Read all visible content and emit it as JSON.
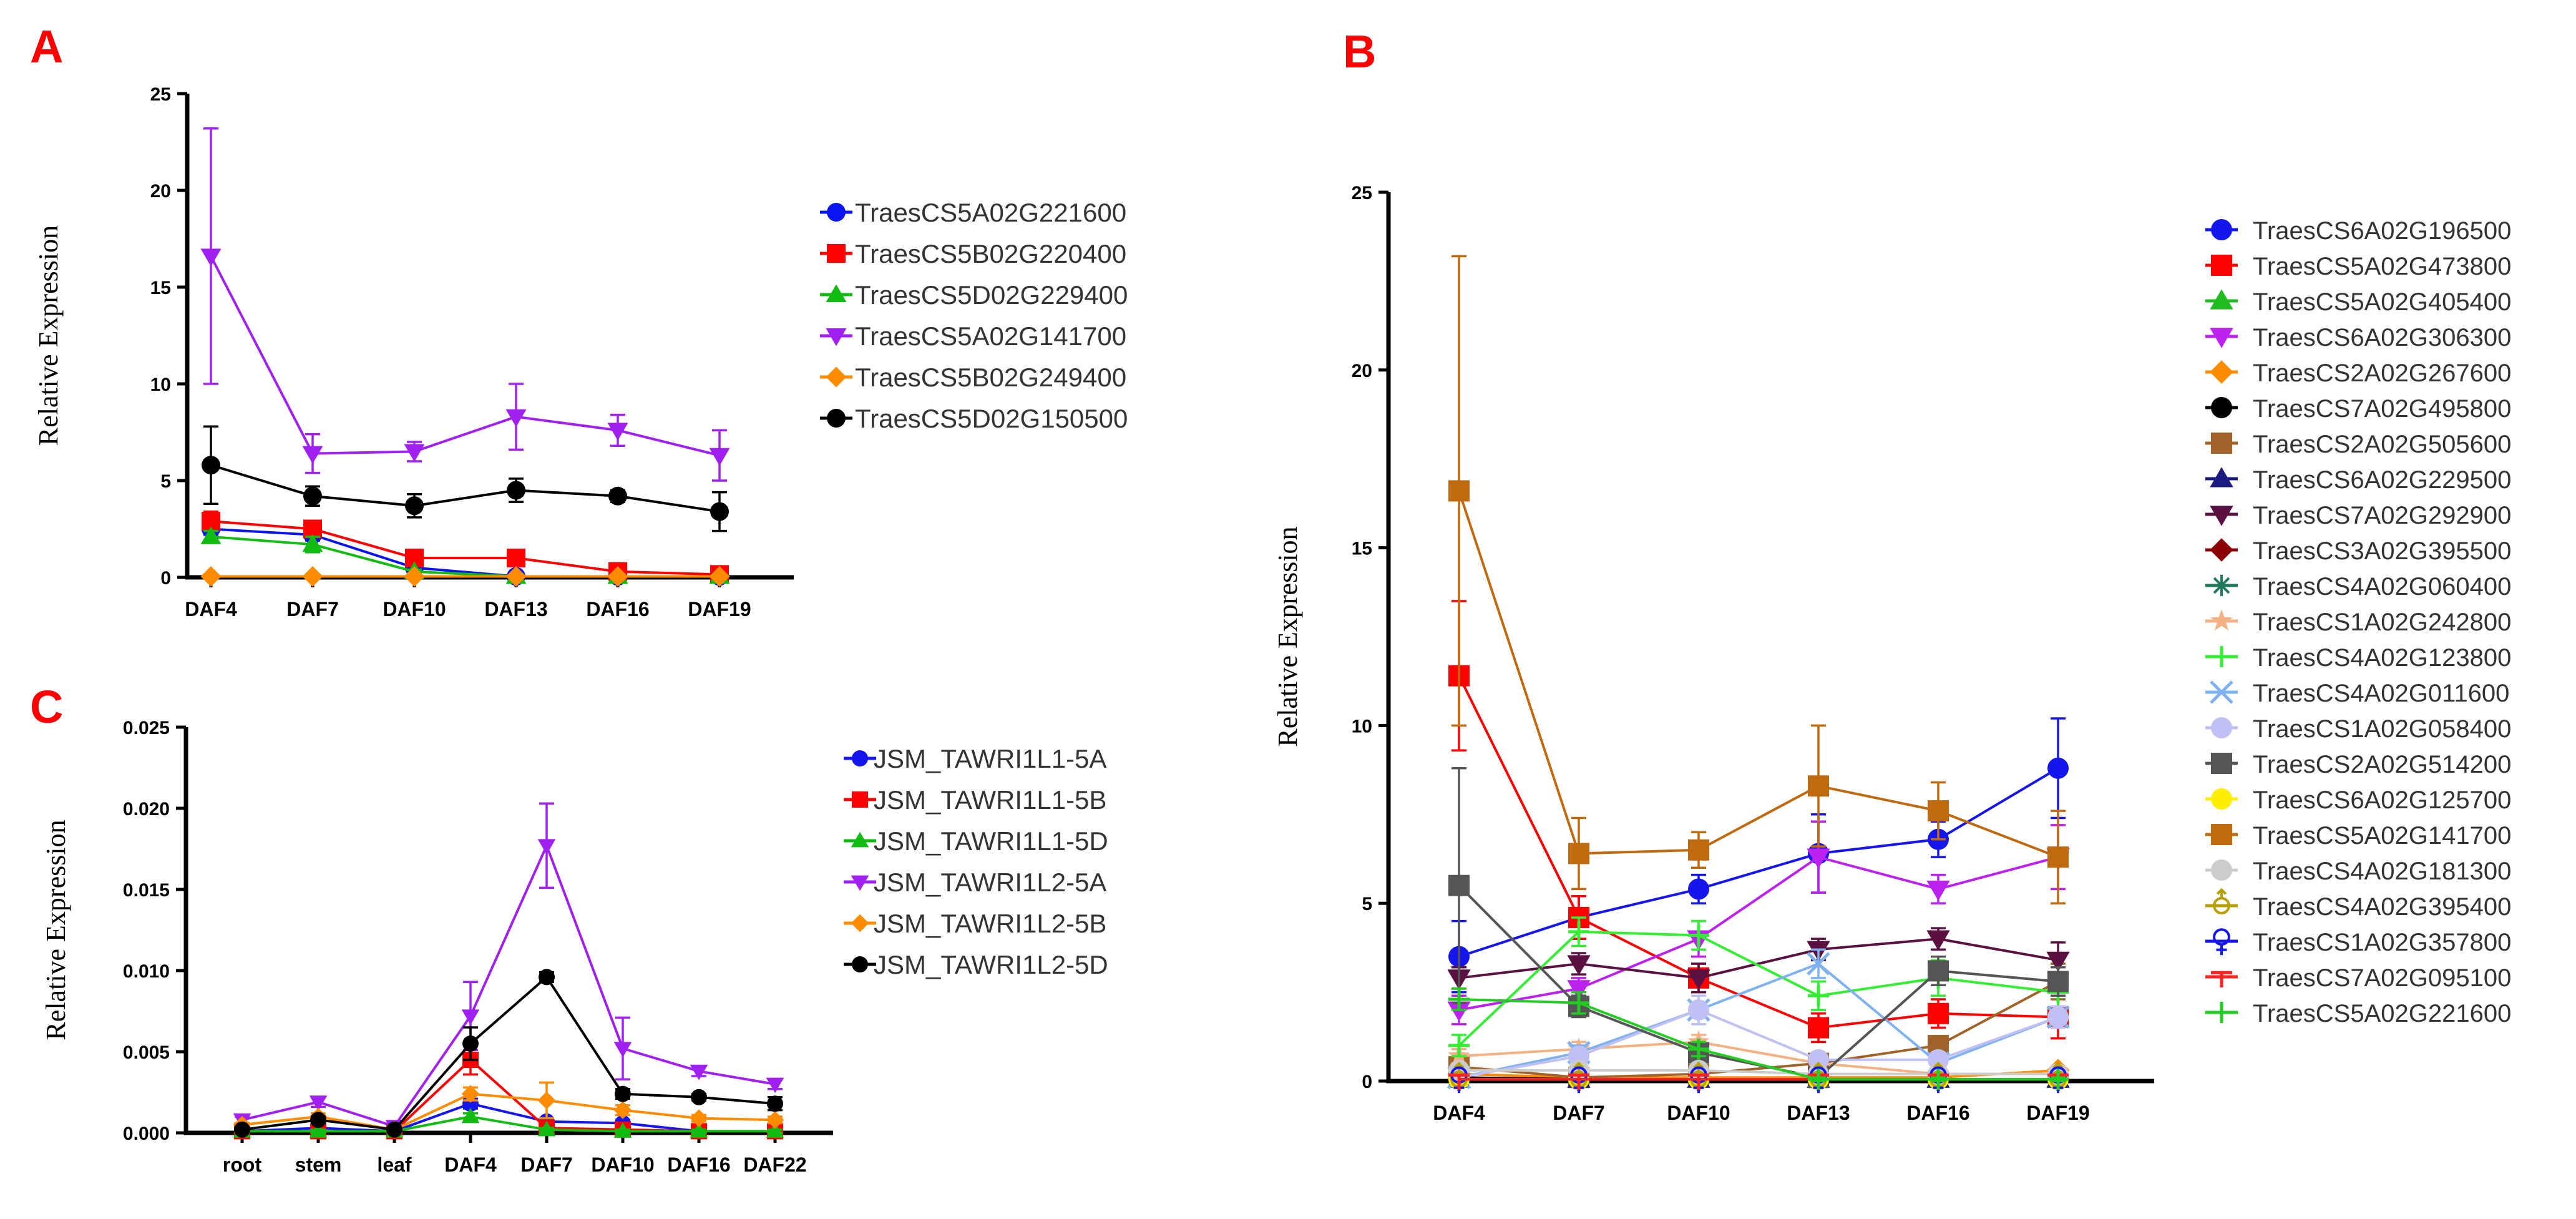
{
  "panels": {
    "A": "A",
    "B": "B",
    "C": "C"
  },
  "chart_data": [
    {
      "id": "A",
      "type": "line",
      "ylabel": "Relative Expression",
      "xlabel": "",
      "ylim": [
        0,
        25
      ],
      "yticks": [
        0,
        5,
        10,
        15,
        20,
        25
      ],
      "categories": [
        "DAF4",
        "DAF7",
        "DAF10",
        "DAF13",
        "DAF16",
        "DAF19"
      ],
      "series": [
        {
          "name": "TraesCS5A02G221600",
          "color": "#0a14f0",
          "marker": "circle",
          "values": [
            2.5,
            2.2,
            0.5,
            0.05,
            0.05,
            0.05
          ],
          "errors": [
            0.3,
            0.3,
            0.2,
            0.05,
            0.05,
            0.05
          ]
        },
        {
          "name": "TraesCS5B02G220400",
          "color": "#ff0000",
          "marker": "square",
          "values": [
            2.9,
            2.5,
            1.0,
            1.0,
            0.3,
            0.15
          ],
          "errors": [
            0.5,
            0.4,
            0.2,
            0.2,
            0.1,
            0.1
          ]
        },
        {
          "name": "TraesCS5D02G229400",
          "color": "#11bb11",
          "marker": "triangle-up",
          "values": [
            2.1,
            1.7,
            0.3,
            0.05,
            0.05,
            0.05
          ],
          "errors": [
            0.3,
            0.4,
            0.1,
            0.05,
            0.05,
            0.05
          ]
        },
        {
          "name": "TraesCS5A02G141700",
          "color": "#a020f0",
          "marker": "triangle-down",
          "values": [
            16.6,
            6.4,
            6.5,
            8.3,
            7.6,
            6.3
          ],
          "errors": [
            6.6,
            1.0,
            0.5,
            1.7,
            0.8,
            1.3
          ]
        },
        {
          "name": "TraesCS5B02G249400",
          "color": "#ff8c00",
          "marker": "diamond",
          "values": [
            0.05,
            0.05,
            0.05,
            0.05,
            0.05,
            0.05
          ],
          "errors": [
            0,
            0,
            0,
            0,
            0,
            0
          ]
        },
        {
          "name": "TraesCS5D02G150500",
          "color": "#000000",
          "marker": "circle",
          "values": [
            5.8,
            4.2,
            3.7,
            4.5,
            4.2,
            3.4
          ],
          "errors": [
            2.0,
            0.5,
            0.6,
            0.6,
            0.3,
            1.0
          ]
        }
      ]
    },
    {
      "id": "B",
      "type": "line",
      "ylabel": "Relative Expression",
      "xlabel": "",
      "ylim": [
        0,
        25
      ],
      "yticks": [
        0,
        5,
        10,
        15,
        20,
        25
      ],
      "categories": [
        "DAF4",
        "DAF7",
        "DAF10",
        "DAF13",
        "DAF16",
        "DAF19"
      ],
      "series": [
        {
          "name": "TraesCS6A02G196500",
          "color": "#1515ee",
          "marker": "circle",
          "values": [
            3.5,
            4.6,
            5.4,
            6.4,
            6.8,
            8.8
          ],
          "errors": [
            1.0,
            0.6,
            0.4,
            1.1,
            0.5,
            1.4
          ]
        },
        {
          "name": "TraesCS5A02G473800",
          "color": "#ff0000",
          "marker": "square",
          "values": [
            11.4,
            4.6,
            2.9,
            1.5,
            1.9,
            1.8
          ],
          "errors": [
            2.1,
            0.6,
            0.4,
            0.4,
            0.4,
            0.6
          ]
        },
        {
          "name": "TraesCS5A02G405400",
          "color": "#22bb22",
          "marker": "triangle-up",
          "values": [
            0.05,
            0.05,
            0.05,
            0.05,
            0.05,
            0.05
          ],
          "errors": [
            0,
            0,
            0,
            0,
            0,
            0
          ]
        },
        {
          "name": "TraesCS6A02G306300",
          "color": "#bb22ee",
          "marker": "triangle-down",
          "values": [
            2.0,
            2.6,
            4.0,
            6.3,
            5.4,
            6.3
          ],
          "errors": [
            0.4,
            0.3,
            0.5,
            1.0,
            0.4,
            0.9
          ]
        },
        {
          "name": "TraesCS2A02G267600",
          "color": "#ff8c00",
          "marker": "diamond",
          "values": [
            0.2,
            0.1,
            0.1,
            0.1,
            0.1,
            0.3
          ],
          "errors": [
            0.1,
            0.05,
            0.05,
            0.05,
            0.05,
            0.1
          ]
        },
        {
          "name": "TraesCS7A02G495800",
          "color": "#000000",
          "marker": "circle",
          "values": [
            0.1,
            0.05,
            0.05,
            0.05,
            0.05,
            0.05
          ],
          "errors": [
            0,
            0,
            0,
            0,
            0,
            0
          ]
        },
        {
          "name": "TraesCS2A02G505600",
          "color": "#a0642a",
          "marker": "square",
          "values": [
            0.4,
            0.1,
            0.2,
            0.5,
            1.0,
            2.8
          ],
          "errors": [
            0.1,
            0.05,
            0.1,
            0.1,
            0.2,
            0.5
          ]
        },
        {
          "name": "TraesCS6A02G229500",
          "color": "#1a1a80",
          "marker": "triangle-up",
          "values": [
            0.05,
            0.05,
            0.05,
            0.05,
            0.05,
            0.05
          ],
          "errors": [
            0,
            0,
            0,
            0,
            0,
            0
          ]
        },
        {
          "name": "TraesCS7A02G292900",
          "color": "#5a1040",
          "marker": "triangle-down",
          "values": [
            2.9,
            3.3,
            2.9,
            3.7,
            4.0,
            3.4
          ],
          "errors": [
            0.3,
            0.3,
            0.4,
            0.3,
            0.3,
            0.5
          ]
        },
        {
          "name": "TraesCS3A02G395500",
          "color": "#8b0000",
          "marker": "diamond",
          "values": [
            0.05,
            0.05,
            0.05,
            0.05,
            0.05,
            0.05
          ],
          "errors": [
            0,
            0,
            0,
            0,
            0,
            0
          ]
        },
        {
          "name": "TraesCS4A02G060400",
          "color": "#1f7a5a",
          "marker": "asterisk",
          "values": [
            0.05,
            0.05,
            0.05,
            0.05,
            0.05,
            0.05
          ],
          "errors": [
            0,
            0,
            0,
            0,
            0,
            0
          ]
        },
        {
          "name": "TraesCS1A02G242800",
          "color": "#f4b183",
          "marker": "star",
          "values": [
            0.7,
            0.9,
            1.1,
            0.5,
            0.2,
            0.2
          ],
          "errors": [
            0.2,
            0.2,
            0.2,
            0.2,
            0.1,
            0.1
          ]
        },
        {
          "name": "TraesCS4A02G123800",
          "color": "#33ee33",
          "marker": "plus",
          "values": [
            1.0,
            4.2,
            4.1,
            2.4,
            2.9,
            2.5
          ],
          "errors": [
            0.3,
            0.4,
            0.4,
            0.4,
            0.5,
            0.4
          ]
        },
        {
          "name": "TraesCS4A02G011600",
          "color": "#7fb2f0",
          "marker": "cross",
          "values": [
            0.1,
            0.8,
            2.0,
            3.3,
            0.5,
            1.8
          ],
          "errors": [
            0.1,
            0.2,
            0.4,
            0.4,
            0.2,
            0.3
          ]
        },
        {
          "name": "TraesCS1A02G058400",
          "color": "#c0c0f5",
          "marker": "circle",
          "values": [
            0.1,
            0.7,
            2.0,
            0.6,
            0.6,
            1.8
          ],
          "errors": [
            0.1,
            0.2,
            0.4,
            0.2,
            0.2,
            0.3
          ]
        },
        {
          "name": "TraesCS2A02G514200",
          "color": "#555555",
          "marker": "square",
          "values": [
            5.5,
            2.1,
            0.8,
            0.1,
            3.1,
            2.8
          ],
          "errors": [
            3.3,
            0.3,
            0.2,
            0.1,
            0.4,
            0.4
          ]
        },
        {
          "name": "TraesCS6A02G125700",
          "color": "#ffee00",
          "marker": "circle",
          "values": [
            0.05,
            0.05,
            0.05,
            0.05,
            0.05,
            0.05
          ],
          "errors": [
            0,
            0,
            0,
            0,
            0,
            0
          ]
        },
        {
          "name": "TraesCS5A02G141700",
          "color": "#c06a10",
          "marker": "square",
          "values": [
            16.6,
            6.4,
            6.5,
            8.3,
            7.6,
            6.3
          ],
          "errors": [
            6.6,
            1.0,
            0.5,
            1.7,
            0.8,
            1.3
          ]
        },
        {
          "name": "TraesCS4A02G181300",
          "color": "#cccccc",
          "marker": "circle",
          "values": [
            0.3,
            0.3,
            0.3,
            0.2,
            0.2,
            0.2
          ],
          "errors": [
            0.1,
            0.1,
            0.1,
            0.1,
            0.1,
            0.1
          ]
        },
        {
          "name": "TraesCS4A02G395400",
          "color": "#b8a000",
          "marker": "male",
          "values": [
            0.05,
            0.05,
            0.05,
            0.05,
            0.05,
            0.05
          ],
          "errors": [
            0,
            0,
            0,
            0,
            0,
            0
          ]
        },
        {
          "name": "TraesCS1A02G357800",
          "color": "#1515ee",
          "marker": "female",
          "values": [
            0.05,
            0.05,
            0.05,
            0.05,
            0.05,
            0.05
          ],
          "errors": [
            0,
            0,
            0,
            0,
            0,
            0
          ]
        },
        {
          "name": "TraesCS7A02G095100",
          "color": "#ff2222",
          "marker": "tee",
          "values": [
            0.05,
            0.05,
            0.05,
            0.05,
            0.05,
            0.05
          ],
          "errors": [
            0,
            0,
            0,
            0,
            0,
            0
          ]
        },
        {
          "name": "TraesCS5A02G221600",
          "color": "#22cc22",
          "marker": "plus",
          "values": [
            2.3,
            2.2,
            0.9,
            0.05,
            0.05,
            0.05
          ],
          "errors": [
            0.3,
            0.3,
            0.2,
            0.05,
            0.05,
            0.05
          ]
        }
      ]
    },
    {
      "id": "C",
      "type": "line",
      "ylabel": "Relative Expression",
      "xlabel": "",
      "ylim": [
        0,
        0.025
      ],
      "yticks": [
        "0.000",
        "0.005",
        "0.010",
        "0.015",
        "0.020",
        "0.025"
      ],
      "categories": [
        "root",
        "stem",
        "leaf",
        "DAF4",
        "DAF7",
        "DAF10",
        "DAF16",
        "DAF22"
      ],
      "series": [
        {
          "name": "JSM_TAWRI1L1-5A",
          "color": "#1515ee",
          "marker": "circle",
          "values": [
            0.0001,
            0.0003,
            0.0001,
            0.0018,
            0.0007,
            0.0006,
            0.0001,
            0.0001
          ],
          "errors": [
            0.0001,
            0.0001,
            0.0001,
            0.0003,
            0.0002,
            0.0002,
            0.0001,
            0.0001
          ]
        },
        {
          "name": "JSM_TAWRI1L1-5B",
          "color": "#ff0000",
          "marker": "square",
          "values": [
            0.0001,
            0.0001,
            0.0001,
            0.0045,
            0.0003,
            0.0002,
            0.0001,
            0.0001
          ],
          "errors": [
            0.0001,
            0.0001,
            0.0001,
            0.0009,
            0.0001,
            0.0001,
            0.0001,
            0.0001
          ]
        },
        {
          "name": "JSM_TAWRI1L1-5D",
          "color": "#11bb11",
          "marker": "triangle-up",
          "values": [
            0.0001,
            0.0001,
            0.0001,
            0.001,
            0.0002,
            0.0001,
            0.0001,
            0.0001
          ],
          "errors": [
            0.0001,
            0.0001,
            0.0001,
            0.0002,
            0.0001,
            0.0001,
            0.0001,
            0.0001
          ]
        },
        {
          "name": "JSM_TAWRI1L2-5A",
          "color": "#a020f0",
          "marker": "triangle-down",
          "values": [
            0.0008,
            0.0019,
            0.0004,
            0.0072,
            0.0177,
            0.0052,
            0.0038,
            0.003
          ],
          "errors": [
            0.0002,
            0.0003,
            0.0001,
            0.0021,
            0.0026,
            0.0019,
            0.0003,
            0.0003
          ]
        },
        {
          "name": "JSM_TAWRI1L2-5B",
          "color": "#ff8c00",
          "marker": "diamond",
          "values": [
            0.0005,
            0.001,
            0.0002,
            0.0024,
            0.002,
            0.0014,
            0.0009,
            0.0008
          ],
          "errors": [
            0.0001,
            0.0002,
            0.0001,
            0.0004,
            0.0011,
            0.0003,
            0.0002,
            0.0002
          ]
        },
        {
          "name": "JSM_TAWRI1L2-5D",
          "color": "#000000",
          "marker": "circle",
          "values": [
            0.0002,
            0.0008,
            0.0002,
            0.0055,
            0.0096,
            0.0024,
            0.0022,
            0.0018
          ],
          "errors": [
            0.0001,
            0.0002,
            0.0001,
            0.001,
            0.0003,
            0.0003,
            0.0002,
            0.0004
          ]
        }
      ]
    }
  ]
}
